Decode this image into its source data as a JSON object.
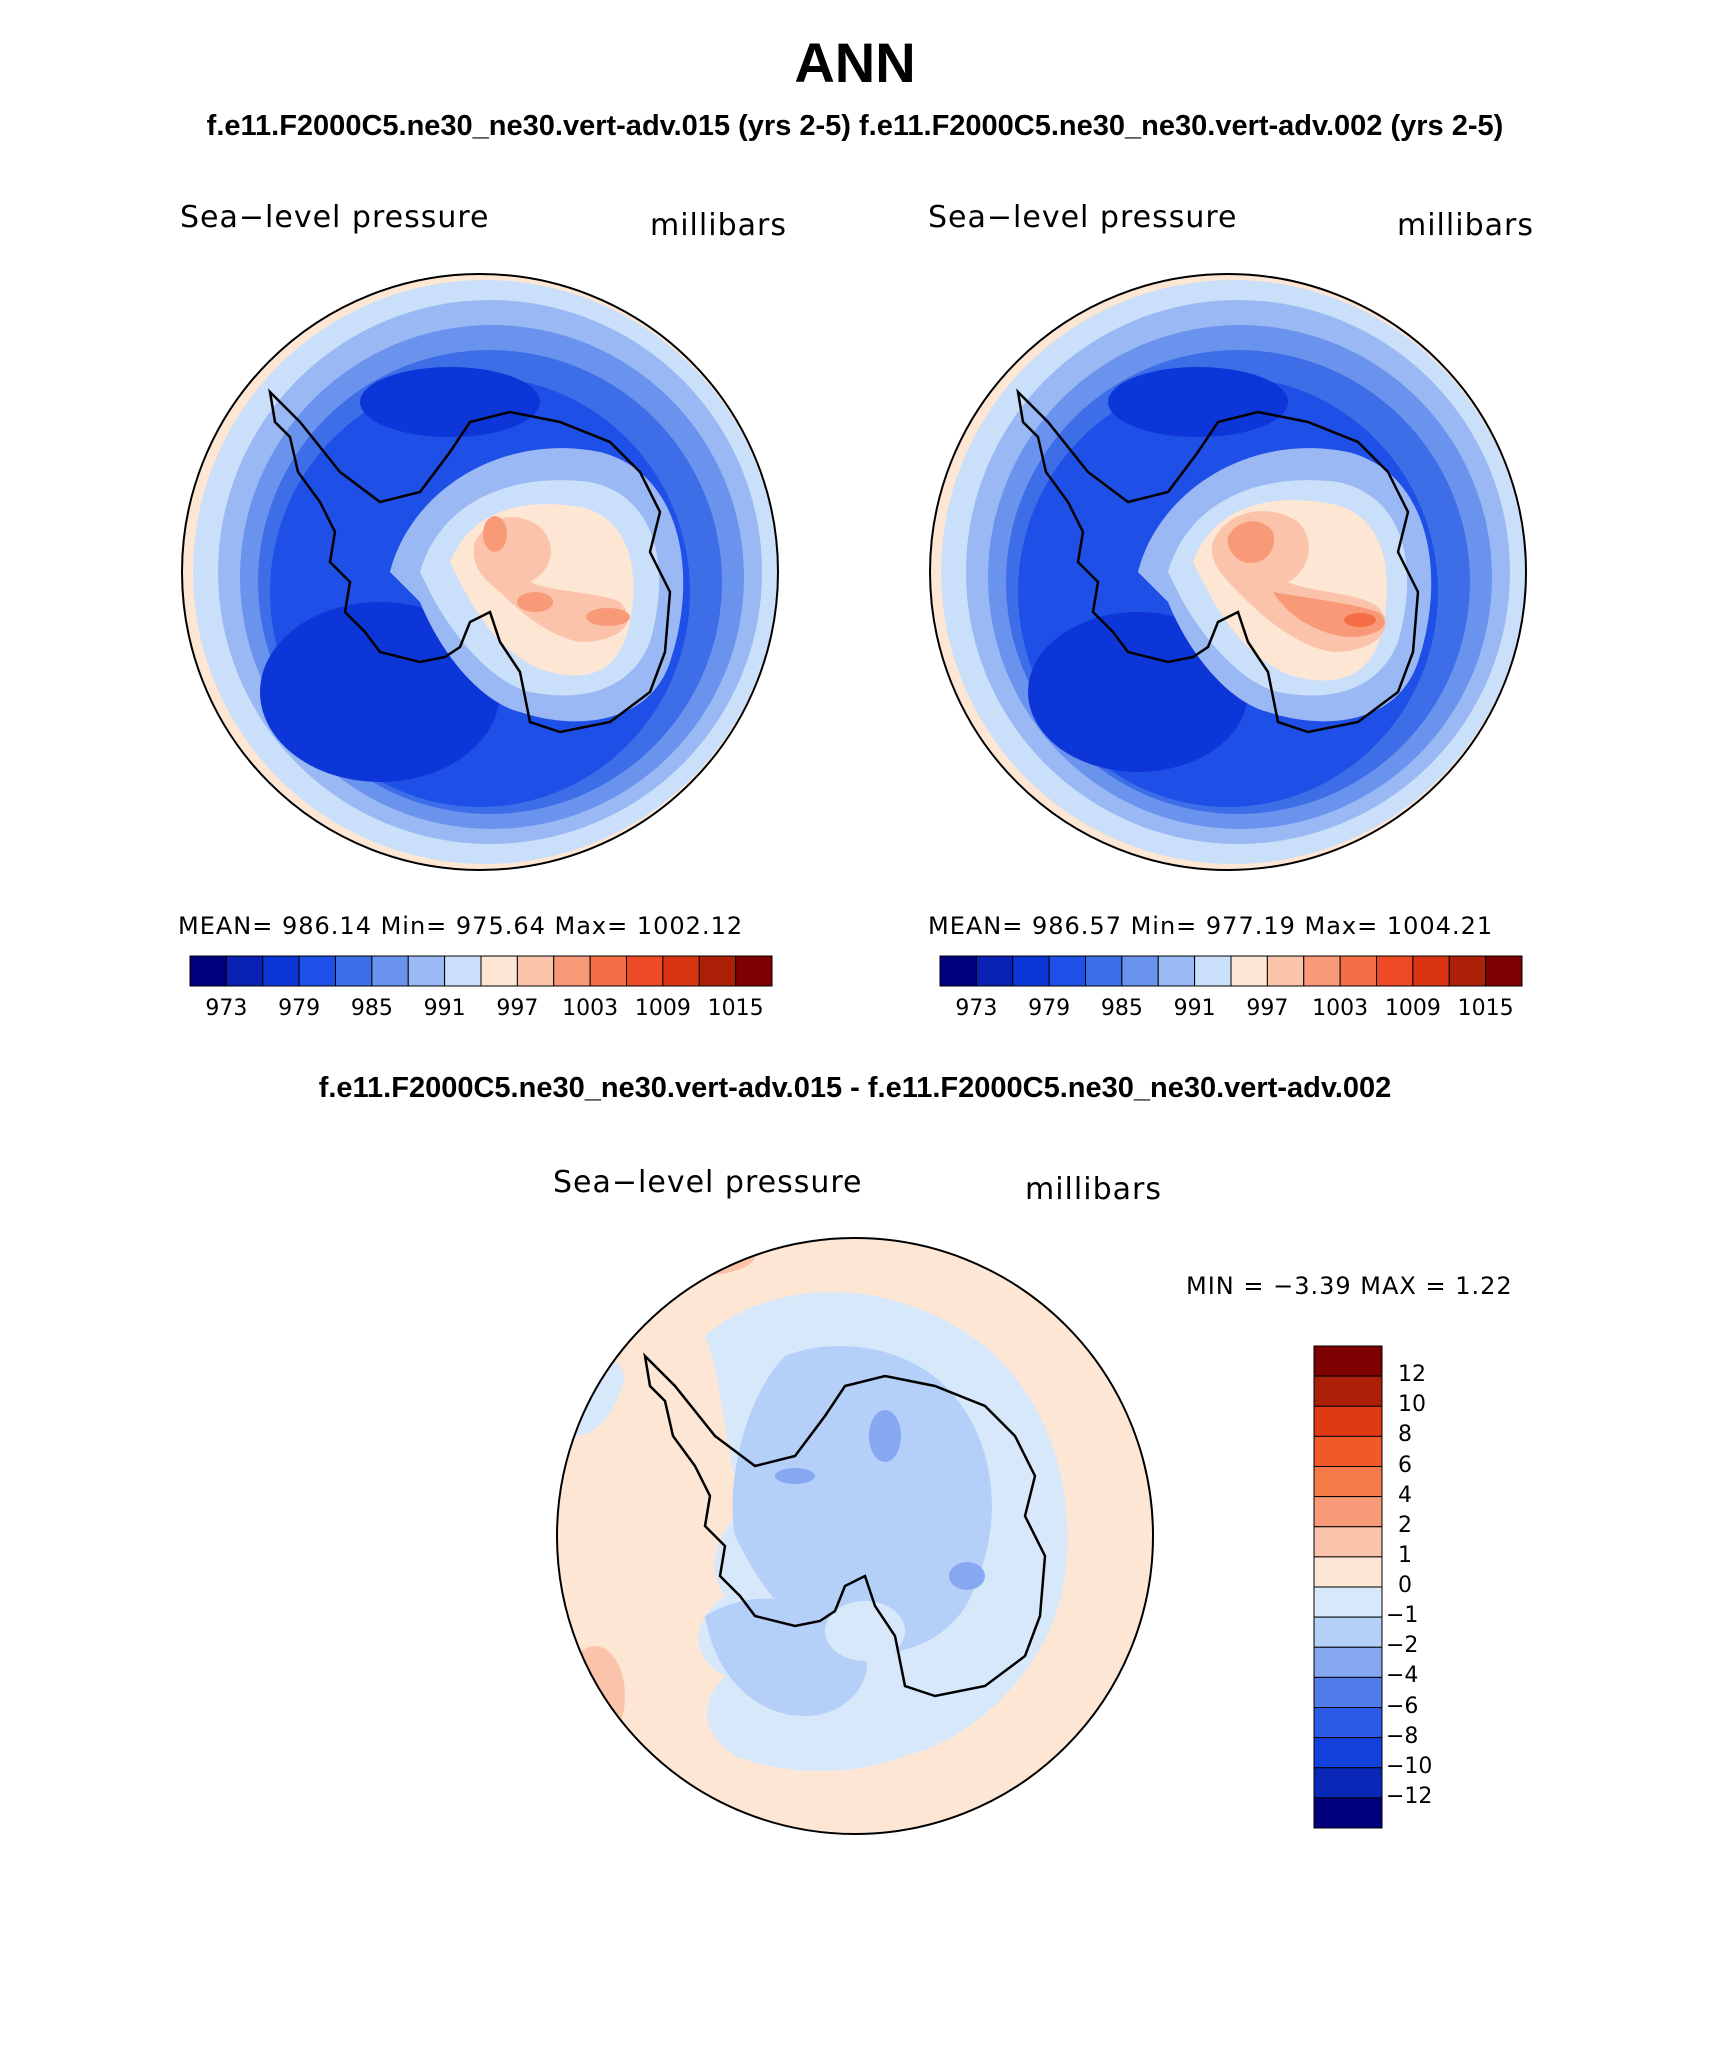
{
  "header": {
    "title": "ANN",
    "subtitle": "f.e11.F2000C5.ne30_ne30.vert-adv.015 (yrs 2-5) f.e11.F2000C5.ne30_ne30.vert-adv.002 (yrs 2-5)"
  },
  "panels": [
    {
      "variable": "Sea−level pressure",
      "units": "millibars",
      "stats": "MEAN= 986.14   Min= 975.64   Max= 1002.12",
      "colorbar": {
        "colors": [
          "#00007e",
          "#0a22b4",
          "#0c36d8",
          "#1e4fe6",
          "#3d6ee8",
          "#6a93ee",
          "#9ab8f4",
          "#cadff9",
          "#fde6d3",
          "#fbc3a9",
          "#f89a78",
          "#f46d45",
          "#ee4a25",
          "#d93513",
          "#ad2008",
          "#7e0000"
        ],
        "tick_labels": [
          "973",
          "979",
          "985",
          "991",
          "997",
          "1003",
          "1009",
          "1015"
        ]
      }
    },
    {
      "variable": "Sea−level pressure",
      "units": "millibars",
      "stats": "MEAN= 986.57   Min= 977.19   Max= 1004.21",
      "colorbar": {
        "colors": [
          "#00007e",
          "#0a22b4",
          "#0c36d8",
          "#1e4fe6",
          "#3d6ee8",
          "#6a93ee",
          "#9ab8f4",
          "#cadff9",
          "#fde6d3",
          "#fbc3a9",
          "#f89a78",
          "#f46d45",
          "#ee4a25",
          "#d93513",
          "#ad2008",
          "#7e0000"
        ],
        "tick_labels": [
          "973",
          "979",
          "985",
          "991",
          "997",
          "1003",
          "1009",
          "1015"
        ]
      }
    }
  ],
  "difference": {
    "title": "f.e11.F2000C5.ne30_ne30.vert-adv.015 - f.e11.F2000C5.ne30_ne30.vert-adv.002",
    "variable": "Sea−level pressure",
    "units": "millibars",
    "minmax": "MIN =   −3.39  MAX =    1.22",
    "colorbar": {
      "colors_top_to_bottom": [
        "#7e0000",
        "#ad2008",
        "#e03a12",
        "#f05a2a",
        "#f57a48",
        "#f89a78",
        "#fbc3a9",
        "#fde6d3",
        "#d8e8fb",
        "#b4cff8",
        "#86a8f0",
        "#4f7ce9",
        "#2a5ae6",
        "#1440dc",
        "#0a28b8",
        "#00007e"
      ],
      "tick_labels": [
        "12",
        "10",
        "8",
        "6",
        "4",
        "2",
        "1",
        "0",
        "−1",
        "−2",
        "−4",
        "−6",
        "−8",
        "−10",
        "−12"
      ]
    }
  },
  "map_palette": {
    "ocean_lowest": "#0c36d8",
    "antarctic_high": "#f89a78",
    "diff_positive": "#fde6d3",
    "diff_negative": "#b4cff8"
  }
}
